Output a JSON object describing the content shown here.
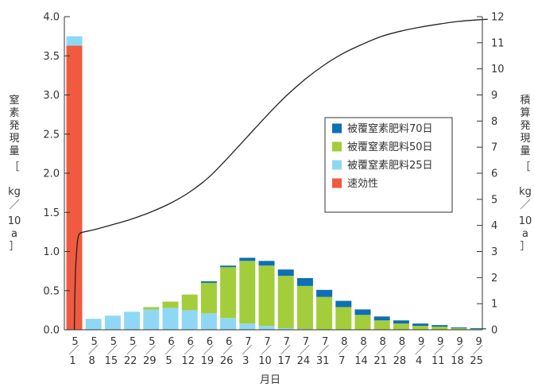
{
  "chart_data": {
    "type": "bar",
    "xlabel": "月日",
    "ylabel_left_chars": [
      "窒",
      "素",
      "発",
      "現",
      "量",
      "［",
      "kg",
      "／",
      "10",
      "a",
      "］"
    ],
    "ylabel_right_chars": [
      "積",
      "算",
      "発",
      "現",
      "量",
      "［",
      "kg",
      "／",
      "10",
      "a",
      "］"
    ],
    "ylim_left": [
      0,
      4.0
    ],
    "yticks_left": [
      "0.0",
      "0.5",
      "1.0",
      "1.5",
      "2.0",
      "2.5",
      "3.0",
      "3.5",
      "4.0"
    ],
    "ylim_right": [
      0,
      12
    ],
    "yticks_right": [
      "0",
      "1",
      "2",
      "3",
      "4",
      "5",
      "6",
      "7",
      "8",
      "9",
      "10",
      "11",
      "12"
    ],
    "categories": [
      {
        "month": "5",
        "day": "1"
      },
      {
        "month": "5",
        "day": "8"
      },
      {
        "month": "5",
        "day": "15"
      },
      {
        "month": "5",
        "day": "22"
      },
      {
        "month": "5",
        "day": "29"
      },
      {
        "month": "6",
        "day": "5"
      },
      {
        "month": "6",
        "day": "12"
      },
      {
        "month": "6",
        "day": "19"
      },
      {
        "month": "6",
        "day": "26"
      },
      {
        "month": "7",
        "day": "3"
      },
      {
        "month": "7",
        "day": "10"
      },
      {
        "month": "7",
        "day": "17"
      },
      {
        "month": "7",
        "day": "24"
      },
      {
        "month": "7",
        "day": "31"
      },
      {
        "month": "8",
        "day": "7"
      },
      {
        "month": "8",
        "day": "14"
      },
      {
        "month": "8",
        "day": "21"
      },
      {
        "month": "8",
        "day": "28"
      },
      {
        "month": "9",
        "day": "4"
      },
      {
        "month": "9",
        "day": "11"
      },
      {
        "month": "9",
        "day": "18"
      },
      {
        "month": "9",
        "day": "25"
      }
    ],
    "date_separator": "／",
    "series": [
      {
        "name": "速効性",
        "color": "#f05a40",
        "values": [
          3.63,
          0,
          0,
          0,
          0,
          0,
          0,
          0,
          0,
          0,
          0,
          0,
          0,
          0,
          0,
          0,
          0,
          0,
          0,
          0,
          0,
          0
        ]
      },
      {
        "name": "被覆窒素肥料25日",
        "color": "#8ed8f5",
        "values": [
          0.12,
          0.14,
          0.18,
          0.23,
          0.26,
          0.28,
          0.25,
          0.21,
          0.15,
          0.08,
          0.05,
          0.02,
          0.01,
          0,
          0,
          0,
          0,
          0,
          0,
          0,
          0,
          0
        ]
      },
      {
        "name": "被覆窒素肥料50日",
        "color": "#a3cd3b",
        "values": [
          0,
          0,
          0,
          0,
          0.03,
          0.08,
          0.2,
          0.39,
          0.65,
          0.8,
          0.77,
          0.67,
          0.55,
          0.42,
          0.29,
          0.19,
          0.12,
          0.08,
          0.05,
          0.04,
          0.02,
          0.01
        ]
      },
      {
        "name": "被覆窒素肥料70日",
        "color": "#0e6fb5",
        "values": [
          0,
          0,
          0,
          0,
          0,
          0,
          0,
          0.02,
          0.02,
          0.04,
          0.06,
          0.08,
          0.1,
          0.09,
          0.08,
          0.07,
          0.05,
          0.04,
          0.03,
          0.02,
          0.01,
          0.01
        ]
      }
    ],
    "legend_order": [
      "被覆窒素肥料70日",
      "被覆窒素肥料50日",
      "被覆窒素肥料25日",
      "速効性"
    ],
    "legend_position": "center-right",
    "cumulative_line": {
      "name": "積算発現量",
      "axis": "right",
      "x": [
        0,
        0.05,
        0.13,
        0.2,
        0.3,
        0.5,
        1,
        1.5,
        2,
        3,
        4,
        5,
        6,
        7,
        8,
        9,
        10,
        11,
        12,
        13,
        14,
        15,
        16,
        17,
        18,
        19,
        20,
        21,
        21.5
      ],
      "y": [
        0.0,
        2.0,
        3.1,
        3.55,
        3.7,
        3.75,
        3.83,
        3.93,
        4.03,
        4.25,
        4.52,
        4.85,
        5.28,
        5.85,
        6.6,
        7.4,
        8.2,
        8.95,
        9.6,
        10.15,
        10.6,
        10.95,
        11.25,
        11.45,
        11.6,
        11.72,
        11.82,
        11.88,
        11.9
      ]
    },
    "grid": false
  }
}
